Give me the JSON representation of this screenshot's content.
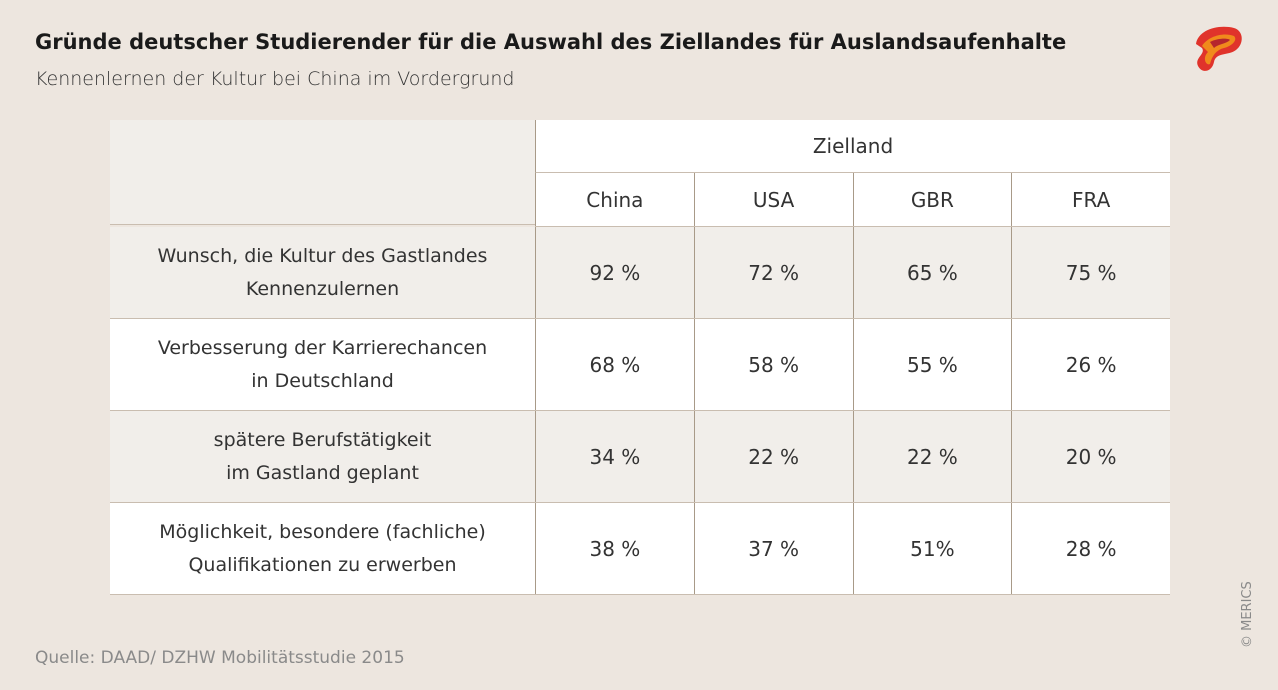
{
  "header": {
    "title": "Gründe deutscher Studierender für die Auswahl des Ziellandes für Auslandsaufenhalte",
    "subtitle": "Kennenlernen der Kultur bei China im Vordergrund"
  },
  "table": {
    "group_header": "Zielland",
    "columns": [
      "China",
      "USA",
      "GBR",
      "FRA"
    ],
    "rows": [
      {
        "label": [
          "Wunsch, die Kultur des Gastlandes",
          "Kennenzulernen"
        ],
        "cells": [
          "92 %",
          "72 %",
          "65 %",
          "75 %"
        ]
      },
      {
        "label": [
          "Verbesserung der Karrierechancen",
          "in Deutschland"
        ],
        "cells": [
          "68 %",
          "58 %",
          "55 %",
          "26 %"
        ]
      },
      {
        "label": [
          "spätere Berufstätigkeit",
          "im Gastland geplant"
        ],
        "cells": [
          "34 %",
          "22 %",
          "22 %",
          "20 %"
        ]
      },
      {
        "label": [
          "Möglichkeit, besondere (fachliche)",
          "Qualifikationen zu erwerben"
        ],
        "cells": [
          "38 %",
          "37 %",
          "51%",
          "28 %"
        ]
      }
    ]
  },
  "footer": {
    "source": "Quelle: DAAD/ DZHW Mobilitätsstudie 2015",
    "copyright": "© MERICS"
  }
}
